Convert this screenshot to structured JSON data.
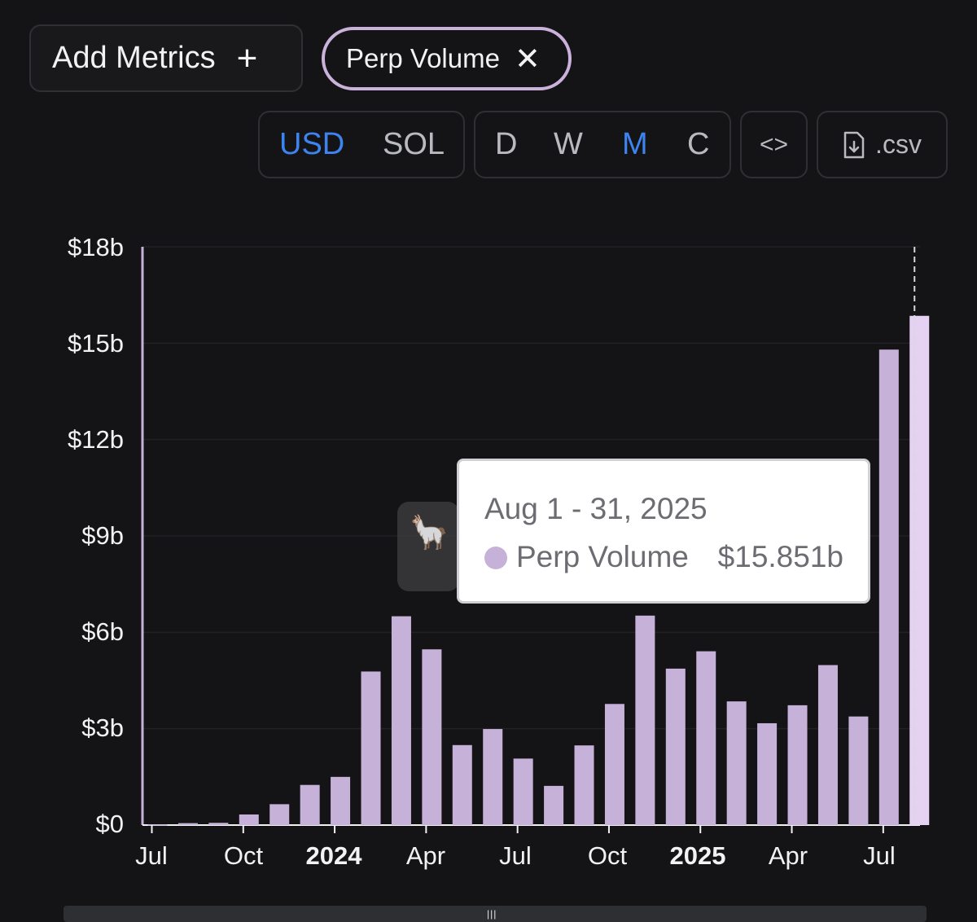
{
  "toolbar": {
    "add_metrics_label": "Add Metrics",
    "add_icon": "+",
    "metric_chip_label": "Perp Volume",
    "remove_icon": "✕",
    "currency_options": [
      "USD",
      "SOL"
    ],
    "currency_selected": "USD",
    "period_options": [
      "D",
      "W",
      "M",
      "C"
    ],
    "period_selected": "M",
    "embed_icon": "<>",
    "csv_label": ".csv"
  },
  "tooltip": {
    "date": "Aug 1 - 31, 2025",
    "series": "Perp Volume",
    "value": "$15.851b"
  },
  "colors": {
    "bar": "#c6b1d9",
    "bar_highlight": "#e5d2f3",
    "accent_selected": "#3d84f0",
    "background": "#141416"
  },
  "chart_data": {
    "type": "bar",
    "title": "",
    "xlabel": "",
    "ylabel": "",
    "ylim": [
      0,
      18
    ],
    "yticks": [
      "$0",
      "$3b",
      "$6b",
      "$9b",
      "$12b",
      "$15b",
      "$18b"
    ],
    "ytick_values": [
      0,
      3,
      6,
      9,
      12,
      15,
      18
    ],
    "xticks": [
      {
        "label": "Jul",
        "month": "2023-07",
        "bold": false
      },
      {
        "label": "Oct",
        "month": "2023-10",
        "bold": false
      },
      {
        "label": "2024",
        "month": "2024-01",
        "bold": true
      },
      {
        "label": "Apr",
        "month": "2024-04",
        "bold": false
      },
      {
        "label": "Jul",
        "month": "2024-07",
        "bold": false
      },
      {
        "label": "Oct",
        "month": "2024-10",
        "bold": false
      },
      {
        "label": "2025",
        "month": "2025-01",
        "bold": true
      },
      {
        "label": "Apr",
        "month": "2025-04",
        "bold": false
      },
      {
        "label": "Jul",
        "month": "2025-07",
        "bold": false
      }
    ],
    "categories": [
      "2023-07",
      "2023-08",
      "2023-09",
      "2023-10",
      "2023-11",
      "2023-12",
      "2024-01",
      "2024-02",
      "2024-03",
      "2024-04",
      "2024-05",
      "2024-06",
      "2024-07",
      "2024-08",
      "2024-09",
      "2024-10",
      "2024-11",
      "2024-12",
      "2025-01",
      "2025-02",
      "2025-03",
      "2025-04",
      "2025-05",
      "2025-06",
      "2025-07",
      "2025-08"
    ],
    "series": [
      {
        "name": "Perp Volume",
        "values": [
          0.02,
          0.06,
          0.07,
          0.33,
          0.65,
          1.25,
          1.5,
          4.78,
          6.5,
          5.47,
          2.49,
          2.99,
          2.07,
          1.22,
          2.48,
          3.77,
          6.52,
          4.87,
          5.41,
          3.85,
          3.17,
          3.73,
          4.98,
          3.38,
          14.8,
          15.851
        ]
      }
    ],
    "highlighted_category": "2025-08",
    "grid": true,
    "legend": "none"
  }
}
